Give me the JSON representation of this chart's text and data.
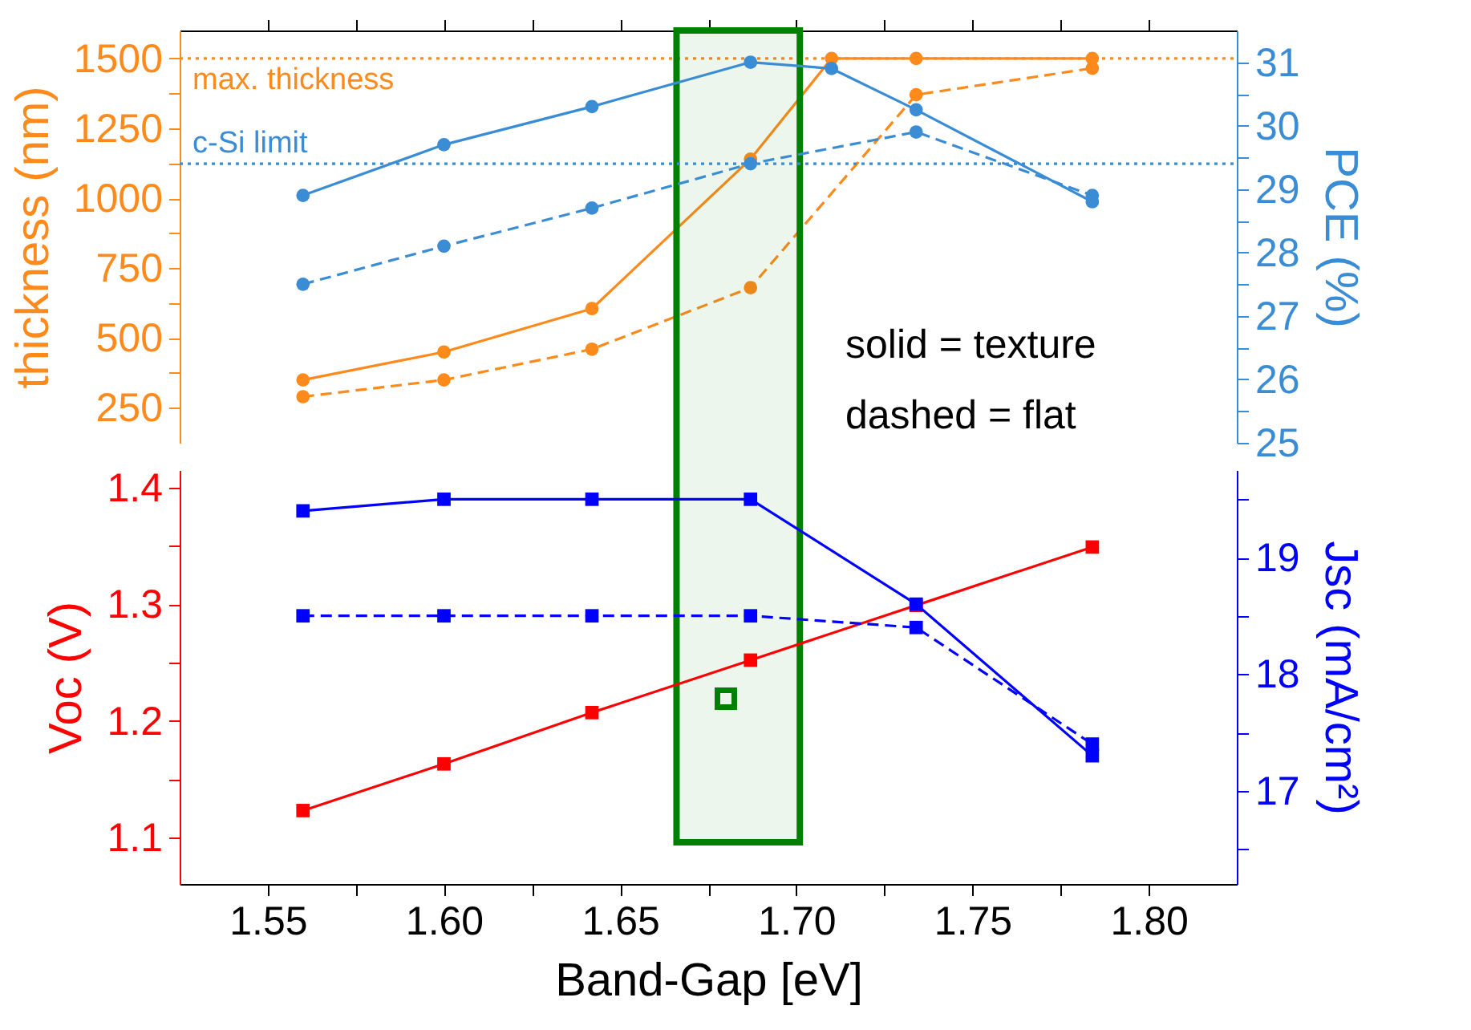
{
  "chart_data": [
    {
      "type": "line",
      "ylabel": "thickness (nm)",
      "y2label": "PCE (%)",
      "xlim": [
        1.525,
        1.825
      ],
      "xticks": [
        {
          "value": 1.55,
          "label": null
        },
        {
          "value": 1.575,
          "label": null
        },
        {
          "value": 1.6,
          "label": null
        },
        {
          "value": 1.625,
          "label": null
        },
        {
          "value": 1.65,
          "label": null
        },
        {
          "value": 1.675,
          "label": null
        },
        {
          "value": 1.7,
          "label": null
        },
        {
          "value": 1.725,
          "label": null
        },
        {
          "value": 1.75,
          "label": null
        },
        {
          "value": 1.775,
          "label": null
        },
        {
          "value": 1.8,
          "label": null
        }
      ],
      "ylim": [
        125,
        1600
      ],
      "yticks": [
        250,
        {
          "value": 375,
          "label": null
        },
        500,
        {
          "value": 625,
          "label": null
        },
        750,
        {
          "value": 875,
          "label": null
        },
        1000,
        {
          "value": 1125,
          "label": null
        },
        1250,
        {
          "value": 1375,
          "label": null
        },
        1500
      ],
      "y2lim": [
        25,
        31.5
      ],
      "y2ticks": [
        25,
        {
          "value": 25.5,
          "label": null
        },
        26,
        {
          "value": 26.5,
          "label": null
        },
        27,
        {
          "value": 27.5,
          "label": null
        },
        28,
        {
          "value": 28.5,
          "label": null
        },
        29,
        {
          "value": 29.5,
          "label": null
        },
        30,
        {
          "value": 30.5,
          "label": null
        },
        31
      ],
      "tick_labels": "y",
      "grid": false,
      "series": [
        {
          "color": "#ff8a1c",
          "marker": "circle",
          "line_style": "solid",
          "x": [
            1.56,
            1.6,
            1.642,
            1.687,
            1.71,
            1.734,
            1.784
          ],
          "values": [
            350,
            450,
            605,
            1140,
            1500,
            1500,
            1500
          ]
        },
        {
          "color": "#ff8a1c",
          "marker": "circle",
          "line_style": "dashed",
          "x": [
            1.56,
            1.6,
            1.642,
            1.687,
            1.734,
            1.784
          ],
          "values": [
            290,
            350,
            460,
            680,
            1370,
            1465
          ]
        },
        {
          "color": "#3a8dd4",
          "marker": "circle",
          "line_style": "solid",
          "axis": "y2",
          "x": [
            1.56,
            1.6,
            1.642,
            1.687,
            1.71,
            1.734,
            1.784
          ],
          "values": [
            28.9,
            29.7,
            30.3,
            31.0,
            30.9,
            30.25,
            28.8
          ]
        },
        {
          "color": "#3a8dd4",
          "marker": "circle",
          "line_style": "dashed",
          "axis": "y2",
          "x": [
            1.56,
            1.6,
            1.642,
            1.687,
            1.734,
            1.784
          ],
          "values": [
            27.5,
            28.1,
            28.7,
            29.4,
            29.9,
            28.9
          ]
        }
      ],
      "ref_lines": [
        {
          "axis": "y",
          "value": 1500,
          "label": "max. thickness",
          "color": "#ff8a1c",
          "line_style": "dotted"
        },
        {
          "axis": "y2",
          "value": 29.4,
          "label": "c-Si limit",
          "color": "#3a8dd4",
          "line_style": "dotted"
        }
      ],
      "bands": [
        {
          "axis": "x",
          "from": 1.666,
          "to": 1.701,
          "color": "#008000"
        }
      ],
      "annotations": [
        "solid = texture",
        "dashed = flat"
      ]
    },
    {
      "type": "line",
      "xlabel": "Band-Gap [eV]",
      "ylabel": "Voc (V)",
      "y2label": "Jsc (mA/cm²)",
      "xlim": [
        1.525,
        1.825
      ],
      "xticks": [
        {
          "value": 1.55,
          "label": "1.55"
        },
        {
          "value": 1.575,
          "label": null
        },
        {
          "value": 1.6,
          "label": "1.60"
        },
        {
          "value": 1.625,
          "label": null
        },
        {
          "value": 1.65,
          "label": "1.65"
        },
        {
          "value": 1.675,
          "label": null
        },
        {
          "value": 1.7,
          "label": "1.70"
        },
        {
          "value": 1.725,
          "label": null
        },
        {
          "value": 1.75,
          "label": "1.75"
        },
        {
          "value": 1.775,
          "label": null
        },
        {
          "value": 1.8,
          "label": "1.80"
        }
      ],
      "ylim": [
        1.06,
        1.415
      ],
      "yticks": [
        1.1,
        {
          "value": 1.15,
          "label": null
        },
        1.2,
        {
          "value": 1.25,
          "label": null
        },
        1.3,
        {
          "value": 1.35,
          "label": null
        },
        1.4
      ],
      "y2lim": [
        16.2,
        19.75
      ],
      "y2ticks": [
        {
          "value": 16.5,
          "label": null
        },
        17,
        {
          "value": 17.5,
          "label": null
        },
        18,
        {
          "value": 18.5,
          "label": null
        },
        19,
        {
          "value": 19.5,
          "label": null
        }
      ],
      "grid": false,
      "series": [
        {
          "color": "#ff0000",
          "marker": "square",
          "line_style": "solid",
          "x": [
            1.56,
            1.6,
            1.642,
            1.687,
            1.734,
            1.784
          ],
          "values": [
            1.123,
            1.163,
            1.207,
            1.252,
            1.299,
            1.349
          ]
        },
        {
          "color": "#0000ff",
          "marker": "square",
          "line_style": "solid",
          "axis": "y2",
          "x": [
            1.56,
            1.6,
            1.642,
            1.687,
            1.734,
            1.784
          ],
          "values": [
            19.4,
            19.5,
            19.5,
            19.5,
            18.6,
            17.3
          ]
        },
        {
          "color": "#0000ff",
          "marker": "square",
          "line_style": "dashed",
          "axis": "y2",
          "x": [
            1.56,
            1.6,
            1.642,
            1.687,
            1.734,
            1.784
          ],
          "values": [
            18.5,
            18.5,
            18.5,
            18.5,
            18.4,
            17.4
          ]
        },
        {
          "type": "scatter",
          "color": "#008000",
          "marker": "square",
          "x": [
            1.68
          ],
          "values": [
            1.219
          ]
        }
      ]
    }
  ]
}
